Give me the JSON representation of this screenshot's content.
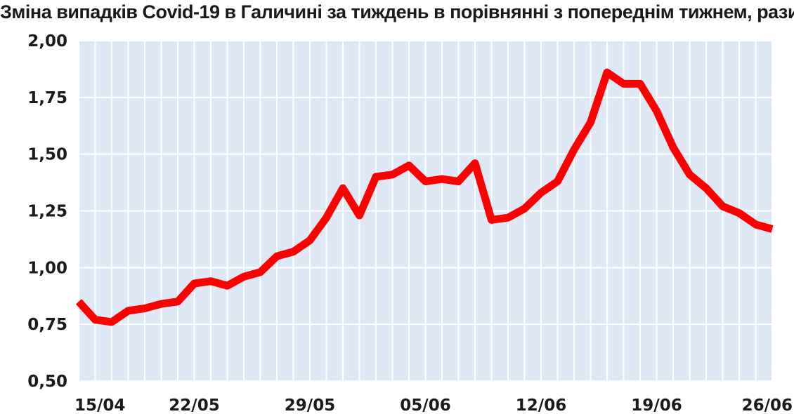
{
  "chart_data": {
    "type": "line",
    "title": "Зміна випадків Covid-19 в Галичині за тиждень в порівнянні з попереднім тижнем, рази",
    "xlabel": "",
    "ylabel": "",
    "ylim": [
      0.5,
      2.0
    ],
    "y_ticks": [
      "0,50",
      "0,75",
      "1,00",
      "1,25",
      "1,50",
      "1,75",
      "2,00"
    ],
    "x_tick_labels": [
      "15/04",
      "22/05",
      "29/05",
      "05/06",
      "12/06",
      "19/06",
      "26/06"
    ],
    "grid": true,
    "line_color": "#ff0000",
    "plot_background": "#dfe9f5",
    "series": [
      {
        "values": [
          0.85,
          0.77,
          0.76,
          0.81,
          0.82,
          0.84,
          0.85,
          0.93,
          0.94,
          0.92,
          0.96,
          0.98,
          1.05,
          1.07,
          1.12,
          1.22,
          1.35,
          1.23,
          1.4,
          1.41,
          1.45,
          1.38,
          1.39,
          1.38,
          1.46,
          1.21,
          1.22,
          1.26,
          1.33,
          1.38,
          1.52,
          1.64,
          1.86,
          1.81,
          1.81,
          1.69,
          1.53,
          1.41,
          1.35,
          1.27,
          1.24,
          1.19,
          1.17
        ]
      }
    ]
  }
}
